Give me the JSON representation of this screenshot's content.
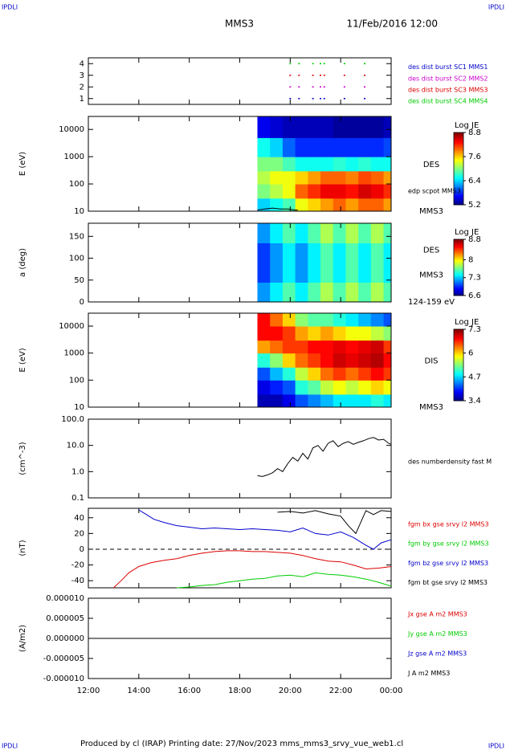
{
  "header": {
    "corner_label": "IPDLI",
    "title": "MMS3",
    "date": "11/Feb/2016 12:00"
  },
  "footer": "Produced by cl (IRAP)   Printing date: 27/Nov/2023   mms_mms3_srvy_vue_web1.cl",
  "chart_data": [
    {
      "type": "scatter",
      "xlim": [
        12,
        24
      ],
      "ylim": [
        0.5,
        4.5
      ],
      "yticks": [
        1,
        2,
        3,
        4
      ],
      "series": [
        {
          "name": "des dist burst SC1 MMS1",
          "color": "#0000cc",
          "x": [
            20.0,
            20.35,
            20.9,
            21.2,
            21.35,
            22.15,
            22.95
          ],
          "values": [
            1,
            1,
            1,
            1,
            1,
            1,
            1
          ]
        },
        {
          "name": "des dist burst SC2 MMS2",
          "color": "#cc00cc",
          "x": [
            20.0,
            20.35,
            20.9,
            21.2,
            21.35,
            22.15,
            22.95
          ],
          "values": [
            2,
            2,
            2,
            2,
            2,
            2,
            2
          ]
        },
        {
          "name": "des dist burst SC3 MMS3",
          "color": "#dd0000",
          "x": [
            20.0,
            20.35,
            20.9,
            21.2,
            21.35,
            22.15,
            22.95
          ],
          "values": [
            3,
            3,
            3,
            3,
            3,
            3,
            3
          ]
        },
        {
          "name": "des dist burst SC4 MMS4",
          "color": "#00cc00",
          "x": [
            20.0,
            20.35,
            20.9,
            21.2,
            21.35,
            22.15,
            22.95
          ],
          "values": [
            4,
            4,
            4,
            4,
            4,
            4,
            4
          ]
        }
      ]
    },
    {
      "type": "heatmap",
      "ylabel": "E (eV)",
      "log": true,
      "xlim": [
        12,
        24
      ],
      "ylim": [
        10,
        30000
      ],
      "yticks": [
        10,
        100,
        1000,
        10000
      ],
      "x_edges": [
        18.7,
        19.2,
        19.7,
        20.2,
        20.7,
        21.2,
        21.7,
        22.2,
        22.7,
        23.2,
        23.7,
        24
      ],
      "y_edges": [
        10,
        30,
        100,
        300,
        1000,
        5000,
        30000
      ],
      "z": [
        [
          6.4,
          6.6,
          6.8,
          7.4,
          7.6,
          7.8,
          8.0,
          7.8,
          8.0,
          8.0,
          7.8
        ],
        [
          7.0,
          7.2,
          7.4,
          8.0,
          8.2,
          8.4,
          8.4,
          8.3,
          8.5,
          8.4,
          8.2
        ],
        [
          7.2,
          7.4,
          7.4,
          7.6,
          7.8,
          8.0,
          8.0,
          7.9,
          8.1,
          8.0,
          7.8
        ],
        [
          7.0,
          7.0,
          6.8,
          6.6,
          6.6,
          6.6,
          6.7,
          6.6,
          6.7,
          6.6,
          6.6
        ],
        [
          6.6,
          6.4,
          6.0,
          5.8,
          5.8,
          5.8,
          5.8,
          5.8,
          5.8,
          5.8,
          5.9
        ],
        [
          5.6,
          5.5,
          5.4,
          5.4,
          5.4,
          5.4,
          5.3,
          5.3,
          5.3,
          5.3,
          5.4
        ]
      ],
      "colorbar": {
        "label": "Log JE",
        "clim": [
          5.2,
          8.8
        ],
        "cticks": [
          5.2,
          6.4,
          7.6,
          8.8
        ]
      },
      "labels": [
        "DES",
        "MMS3"
      ],
      "series": [
        {
          "name": "edp scpot MMS3",
          "color": "#000000",
          "x": [
            18.7,
            19.0,
            19.3,
            19.6,
            19.9,
            20.2,
            20.3
          ],
          "values": [
            11,
            12,
            13,
            12,
            12,
            11,
            11
          ]
        }
      ]
    },
    {
      "type": "heatmap",
      "ylabel": "a (deg)",
      "xlim": [
        12,
        24
      ],
      "ylim": [
        0,
        180
      ],
      "yticks": [
        0,
        50,
        100,
        150
      ],
      "x_edges": [
        18.7,
        19.2,
        19.7,
        20.2,
        20.7,
        21.2,
        21.7,
        22.2,
        22.7,
        23.2,
        23.7,
        24
      ],
      "y_edges": [
        0,
        45,
        90,
        135,
        180
      ],
      "z": [
        [
          7.2,
          7.4,
          7.6,
          7.4,
          7.6,
          7.8,
          7.6,
          7.8,
          7.6,
          7.8,
          7.6
        ],
        [
          7.0,
          7.2,
          7.4,
          7.2,
          7.4,
          7.6,
          7.4,
          7.6,
          7.4,
          7.6,
          7.4
        ],
        [
          7.0,
          7.2,
          7.4,
          7.2,
          7.4,
          7.6,
          7.4,
          7.6,
          7.4,
          7.6,
          7.4
        ],
        [
          7.2,
          7.4,
          7.6,
          7.4,
          7.6,
          7.8,
          7.6,
          7.8,
          7.6,
          7.8,
          7.6
        ]
      ],
      "colorbar": {
        "label": "Log JE",
        "clim": [
          6.6,
          8.8
        ],
        "cticks": [
          6.6,
          7.3,
          8.0,
          8.8
        ]
      },
      "labels": [
        "DES",
        "MMS3",
        "124-159 eV"
      ]
    },
    {
      "type": "heatmap",
      "ylabel": "E (eV)",
      "log": true,
      "xlim": [
        12,
        24
      ],
      "ylim": [
        10,
        30000
      ],
      "yticks": [
        10,
        100,
        1000,
        10000
      ],
      "x_edges": [
        18.7,
        19.2,
        19.7,
        20.2,
        20.7,
        21.2,
        21.7,
        22.2,
        22.7,
        23.2,
        23.7,
        24
      ],
      "y_edges": [
        10,
        30,
        100,
        300,
        1000,
        3000,
        10000,
        30000
      ],
      "z": [
        [
          3.6,
          3.6,
          3.8,
          4.2,
          4.4,
          4.6,
          4.8,
          4.8,
          4.8,
          5.0,
          4.8
        ],
        [
          3.8,
          4.0,
          4.2,
          5.0,
          5.2,
          5.6,
          5.8,
          5.6,
          5.8,
          6.0,
          5.8
        ],
        [
          4.2,
          4.6,
          5.0,
          5.6,
          6.0,
          6.4,
          6.6,
          6.4,
          6.6,
          6.8,
          6.6
        ],
        [
          5.0,
          5.4,
          6.0,
          6.4,
          6.6,
          6.8,
          7.0,
          6.9,
          7.0,
          7.1,
          6.8
        ],
        [
          6.2,
          6.4,
          6.6,
          6.6,
          6.8,
          6.8,
          6.9,
          6.8,
          6.9,
          7.0,
          6.6
        ],
        [
          6.8,
          6.8,
          6.6,
          6.2,
          6.0,
          6.2,
          6.0,
          5.8,
          5.8,
          5.6,
          5.4
        ],
        [
          6.8,
          6.4,
          6.0,
          5.4,
          5.2,
          5.2,
          5.0,
          4.8,
          4.6,
          4.4,
          4.2
        ]
      ],
      "colorbar": {
        "label": "Log JE",
        "clim": [
          3.4,
          7.3
        ],
        "cticks": [
          3.4,
          4.7,
          6.0,
          7.3
        ]
      },
      "labels": [
        "DIS",
        "MMS3"
      ]
    },
    {
      "type": "line",
      "ylabel": "(cm^-3)",
      "log": true,
      "xlim": [
        12,
        24
      ],
      "ylim": [
        0.1,
        100
      ],
      "yticks": [
        {
          "value": 0.1,
          "label": "0.1"
        },
        {
          "value": 1,
          "label": "1.0"
        },
        {
          "value": 10,
          "label": "10.0"
        },
        {
          "value": 100,
          "label": "100.0"
        }
      ],
      "series": [
        {
          "name": "des numberdensity fast M",
          "color": "#000000",
          "x": [
            18.7,
            18.9,
            19.1,
            19.3,
            19.5,
            19.7,
            19.9,
            20.1,
            20.3,
            20.5,
            20.7,
            20.9,
            21.1,
            21.3,
            21.5,
            21.7,
            21.9,
            22.1,
            22.3,
            22.5,
            22.7,
            22.9,
            23.1,
            23.3,
            23.5,
            23.7,
            23.9,
            24.0
          ],
          "values": [
            0.7,
            0.65,
            0.75,
            0.9,
            1.3,
            1.0,
            2.0,
            3.5,
            2.5,
            5,
            3,
            8,
            10,
            6,
            12,
            15,
            9,
            12,
            14,
            11,
            13,
            15,
            18,
            20,
            16,
            17,
            12,
            11
          ]
        }
      ]
    },
    {
      "type": "line",
      "ylabel": "(nT)",
      "xlim": [
        12,
        24
      ],
      "ylim": [
        -49,
        52
      ],
      "yticks": [
        -40,
        -20,
        0,
        20,
        40
      ],
      "zero_line": true,
      "series": [
        {
          "name": "fgm bx gse srvy l2 MMS3",
          "color": "#dd0000",
          "x": [
            13.0,
            13.3,
            13.6,
            14.0,
            14.5,
            15,
            15.5,
            16,
            16.5,
            17,
            17.5,
            18,
            18.5,
            19,
            19.5,
            20,
            20.5,
            21,
            21.5,
            22,
            22.5,
            23,
            23.5,
            24
          ],
          "values": [
            -49,
            -40,
            -30,
            -22,
            -17,
            -14,
            -12,
            -8,
            -5,
            -3,
            -2,
            -2,
            -3,
            -3,
            -4,
            -5,
            -8,
            -12,
            -15,
            -16,
            -20,
            -25,
            -24,
            -22
          ]
        },
        {
          "name": "fgm by gse srvy l2 MMS3",
          "color": "#00cc00",
          "x": [
            15.5,
            16,
            16.5,
            17,
            17.5,
            18,
            18.5,
            19,
            19.5,
            20,
            20.5,
            21,
            21.5,
            22,
            22.5,
            23,
            23.5,
            24
          ],
          "values": [
            -49,
            -48,
            -46,
            -45,
            -42,
            -40,
            -38,
            -37,
            -34,
            -33,
            -35,
            -30,
            -32,
            -33,
            -35,
            -38,
            -42,
            -47
          ]
        },
        {
          "name": "fgm bz gse srvy l2 MMS3",
          "color": "#0000cc",
          "x": [
            14.0,
            14.3,
            14.6,
            15,
            15.5,
            16,
            16.5,
            17,
            17.5,
            18,
            18.5,
            19,
            19.5,
            20,
            20.5,
            21,
            21.5,
            22,
            22.5,
            23,
            23.3,
            23.6,
            24
          ],
          "values": [
            50,
            44,
            38,
            34,
            30,
            28,
            26,
            27,
            26,
            25,
            26,
            25,
            24,
            22,
            27,
            20,
            18,
            22,
            15,
            5,
            0,
            8,
            12
          ]
        },
        {
          "name": "fgm bt gse srvy l2 MMS3",
          "color": "#000000",
          "x": [
            19.5,
            20,
            20.5,
            21,
            21.5,
            22,
            22.3,
            22.6,
            23,
            23.3,
            23.6,
            24
          ],
          "values": [
            47,
            48,
            46,
            49,
            45,
            42,
            30,
            20,
            49,
            44,
            49,
            48
          ]
        }
      ]
    },
    {
      "type": "line",
      "ylabel": "(A/m2)",
      "xlim": [
        12,
        24
      ],
      "ylim": [
        -1e-05,
        1e-05
      ],
      "yticks": [
        {
          "value": -1e-05,
          "label": "-0.000010"
        },
        {
          "value": -5e-06,
          "label": "-0.000005"
        },
        {
          "value": 0,
          "label": "0.000000"
        },
        {
          "value": 5e-06,
          "label": "0.000005"
        },
        {
          "value": 1e-05,
          "label": "0.000010"
        }
      ],
      "xticks": [
        {
          "value": 12,
          "label": "12:00"
        },
        {
          "value": 14,
          "label": "14:00"
        },
        {
          "value": 16,
          "label": "16:00"
        },
        {
          "value": 18,
          "label": "18:00"
        },
        {
          "value": 20,
          "label": "20:00"
        },
        {
          "value": 22,
          "label": "22:00"
        },
        {
          "value": 24,
          "label": "00:00"
        }
      ],
      "series": [
        {
          "name": "Jx gse A m2 MMS3",
          "color": "#dd0000",
          "x": [
            12,
            16,
            20,
            24
          ],
          "values": [
            0,
            0,
            0,
            0
          ]
        },
        {
          "name": "Jy gse A m2 MMS3",
          "color": "#00cc00",
          "x": [
            12,
            16,
            20,
            24
          ],
          "values": [
            0,
            0,
            0,
            0
          ]
        },
        {
          "name": "Jz gse A m2 MMS3",
          "color": "#0000cc",
          "x": [
            12,
            16,
            20,
            24
          ],
          "values": [
            0,
            0,
            0,
            0
          ]
        },
        {
          "name": "J A m2 MMS3",
          "color": "#000000",
          "x": [
            12,
            16,
            20,
            24
          ],
          "values": [
            0,
            0,
            0,
            0
          ]
        }
      ]
    }
  ]
}
